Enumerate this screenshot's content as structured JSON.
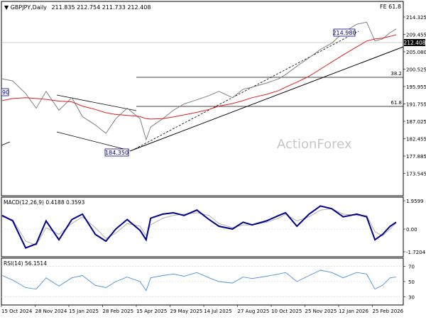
{
  "header": {
    "symbol_line": "GBPJPY,Daily",
    "ohlc": "211.835 212.754 211.733 212.408",
    "fib_label": "FE 61.8"
  },
  "watermark": "ActionForex",
  "colors": {
    "price": "#808080",
    "ema": "#e02020",
    "macd": "#00008b",
    "signal": "#b0b0b0",
    "rsi": "#4a90d9",
    "trend": "#000000",
    "current_price_tag": "#000000",
    "annotation_box": "#00008b"
  },
  "price_axis_labels": [
    "214.325",
    "209.455",
    "205.080",
    "200.525",
    "195.955",
    "191.755",
    "187.025",
    "182.455",
    "177.885",
    "173.545"
  ],
  "macd_axis_labels": [
    "1.9599",
    "0.00",
    "-1.7204"
  ],
  "rsi_axis_labels": [
    "70",
    "50",
    "30"
  ],
  "date_labels": [
    "15 Oct 2024",
    "28 Nov 2024",
    "15 Jan 2025",
    "28 Feb 2025",
    "15 Apr 2025",
    "29 May 2025",
    "14 Jul 2025",
    "27 Aug 2025",
    "10 Oct 2025",
    "25 Nov 2025",
    "12 Jan 2026",
    "25 Feb 2026"
  ],
  "annotations": {
    "high": "214.980",
    "low": "184.350",
    "left_clip": "90",
    "current_price": "212.408",
    "fib_382": "38.2",
    "fib_618": "61.8"
  },
  "chart_data": [
    {
      "type": "line",
      "panel": "price",
      "title": "GBPJPY,Daily",
      "ylim": [
        172.8,
        218.6
      ],
      "x": [
        "2024-10-01",
        "2024-10-15",
        "2024-11-01",
        "2024-11-15",
        "2024-11-28",
        "2024-12-15",
        "2025-01-01",
        "2025-01-15",
        "2025-02-01",
        "2025-02-15",
        "2025-02-28",
        "2025-03-15",
        "2025-04-01",
        "2025-04-09",
        "2025-04-15",
        "2025-05-01",
        "2025-05-15",
        "2025-05-29",
        "2025-06-15",
        "2025-07-01",
        "2025-07-14",
        "2025-08-01",
        "2025-08-15",
        "2025-08-27",
        "2025-09-15",
        "2025-10-01",
        "2025-10-10",
        "2025-10-25",
        "2025-11-10",
        "2025-11-25",
        "2025-12-10",
        "2025-12-25",
        "2026-01-12",
        "2026-01-25",
        "2026-02-05",
        "2026-02-15",
        "2026-02-25",
        "2026-03-05"
      ],
      "series": [
        {
          "key": "close",
          "values": [
            200.5,
            200.0,
            197.0,
            193.5,
            197.5,
            193.0,
            196.0,
            191.5,
            189.5,
            187.5,
            191.0,
            193.5,
            191.0,
            186.0,
            189.0,
            191.0,
            193.0,
            194.5,
            195.5,
            196.5,
            197.5,
            196.0,
            198.0,
            198.5,
            199.5,
            200.5,
            201.5,
            203.5,
            205.5,
            207.5,
            209.0,
            211.5,
            213.5,
            214.0,
            209.5,
            210.0,
            211.5,
            212.4
          ]
        },
        {
          "key": "ema",
          "values": [
            195.3,
            195.8,
            196.0,
            195.8,
            195.6,
            195.2,
            195.0,
            194.0,
            193.2,
            192.4,
            192.0,
            191.8,
            191.5,
            191.0,
            190.9,
            191.0,
            191.4,
            191.9,
            192.5,
            193.2,
            194.0,
            194.6,
            195.3,
            196.0,
            196.8,
            197.7,
            198.5,
            199.7,
            201.1,
            202.8,
            204.5,
            206.2,
            208.1,
            209.5,
            210.0,
            210.2,
            210.6,
            211.0
          ]
        }
      ]
    },
    {
      "type": "line",
      "panel": "macd",
      "title": "MACD(12,26,9) 0.4188 0.3593",
      "ylim": [
        -2.1,
        2.2
      ],
      "x": [
        "2024-10-01",
        "2024-10-15",
        "2024-11-01",
        "2024-11-15",
        "2024-11-28",
        "2024-12-15",
        "2025-01-01",
        "2025-01-15",
        "2025-02-01",
        "2025-02-15",
        "2025-02-28",
        "2025-03-15",
        "2025-04-01",
        "2025-04-09",
        "2025-04-15",
        "2025-05-01",
        "2025-05-15",
        "2025-05-29",
        "2025-06-15",
        "2025-07-01",
        "2025-07-14",
        "2025-08-01",
        "2025-08-15",
        "2025-08-27",
        "2025-09-15",
        "2025-10-01",
        "2025-10-10",
        "2025-10-25",
        "2025-11-10",
        "2025-11-25",
        "2025-12-10",
        "2025-12-25",
        "2026-01-12",
        "2026-01-25",
        "2026-02-05",
        "2026-02-15",
        "2026-02-25",
        "2026-03-05"
      ],
      "series": [
        {
          "key": "macd",
          "values": [
            0.9,
            0.5,
            -1.5,
            -1.2,
            0.5,
            -0.9,
            0.6,
            1.0,
            -0.5,
            -1.0,
            -0.1,
            0.6,
            -0.2,
            -0.9,
            0.7,
            1.0,
            1.1,
            0.9,
            1.3,
            0.6,
            0.1,
            -0.1,
            0.4,
            0.2,
            0.5,
            0.9,
            1.1,
            0.1,
            1.0,
            1.6,
            1.4,
            0.8,
            1.0,
            0.8,
            -0.9,
            -0.5,
            0.1,
            0.4
          ]
        },
        {
          "key": "signal",
          "values": [
            0.8,
            0.6,
            -1.0,
            -1.3,
            0.0,
            -0.5,
            0.3,
            0.8,
            0.0,
            -0.8,
            -0.4,
            0.3,
            0.1,
            -0.6,
            0.2,
            0.7,
            0.9,
            1.0,
            1.1,
            0.9,
            0.3,
            0.0,
            0.2,
            0.2,
            0.4,
            0.7,
            1.0,
            0.5,
            0.8,
            1.3,
            1.4,
            1.0,
            0.9,
            0.9,
            -0.3,
            -0.6,
            -0.1,
            0.36
          ]
        }
      ]
    },
    {
      "type": "line",
      "panel": "rsi",
      "title": "RSI(14) 56.1514",
      "ylim": [
        20,
        80
      ],
      "x": [
        "2024-10-01",
        "2024-10-15",
        "2024-11-01",
        "2024-11-15",
        "2024-11-28",
        "2024-12-15",
        "2025-01-01",
        "2025-01-15",
        "2025-02-01",
        "2025-02-15",
        "2025-02-28",
        "2025-03-15",
        "2025-04-01",
        "2025-04-09",
        "2025-04-15",
        "2025-05-01",
        "2025-05-15",
        "2025-05-29",
        "2025-06-15",
        "2025-07-01",
        "2025-07-14",
        "2025-08-01",
        "2025-08-15",
        "2025-08-27",
        "2025-09-15",
        "2025-10-01",
        "2025-10-10",
        "2025-10-25",
        "2025-11-10",
        "2025-11-25",
        "2025-12-10",
        "2025-12-25",
        "2026-01-12",
        "2026-01-25",
        "2026-02-05",
        "2026-02-15",
        "2026-02-25",
        "2026-03-05"
      ],
      "series": [
        {
          "key": "rsi",
          "values": [
            58,
            52,
            42,
            40,
            55,
            44,
            55,
            58,
            45,
            42,
            50,
            56,
            50,
            38,
            55,
            58,
            60,
            57,
            62,
            55,
            50,
            48,
            56,
            54,
            57,
            60,
            62,
            50,
            58,
            65,
            62,
            55,
            62,
            60,
            40,
            45,
            55,
            56
          ]
        }
      ],
      "levels": [
        70,
        50,
        30
      ]
    }
  ]
}
